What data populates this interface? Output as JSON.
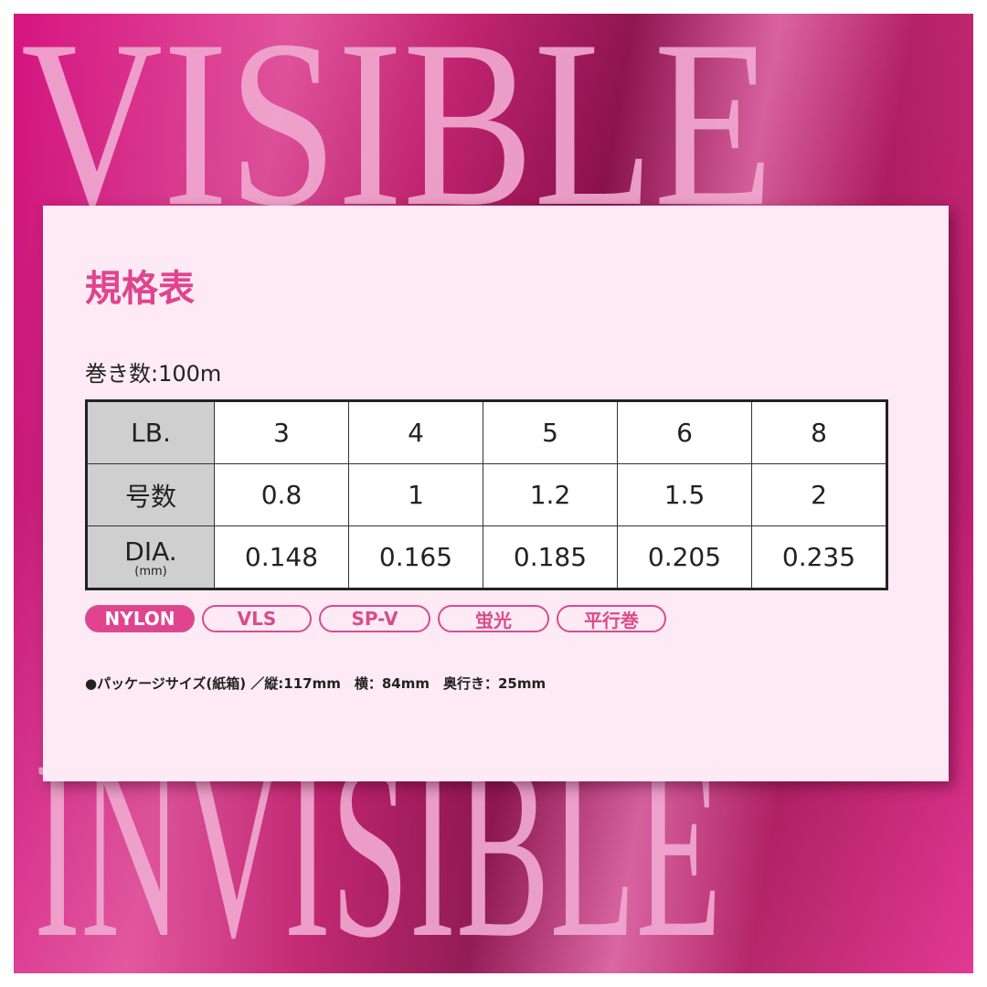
{
  "background": {
    "top_word": "VISIBLE",
    "bottom_word": "INVISIBLE"
  },
  "title": "規格表",
  "winding": "巻き数:100m",
  "table": {
    "rows": [
      {
        "header": "LB.",
        "sub": "",
        "values": [
          "3",
          "4",
          "5",
          "6",
          "8"
        ]
      },
      {
        "header": "号数",
        "sub": "",
        "values": [
          "0.8",
          "1",
          "1.2",
          "1.5",
          "2"
        ]
      },
      {
        "header": "DIA.",
        "sub": "(mm)",
        "values": [
          "0.148",
          "0.165",
          "0.185",
          "0.205",
          "0.235"
        ]
      }
    ]
  },
  "tags": [
    {
      "label": "NYLON",
      "active": true
    },
    {
      "label": "VLS",
      "active": false
    },
    {
      "label": "SP-V",
      "active": false
    },
    {
      "label": "蛍光",
      "active": false
    },
    {
      "label": "平行巻",
      "active": false
    }
  ],
  "package": "●パッケージサイズ(紙箱) ／縦:117mm　横：84mm　奥行き：25mm",
  "colors": {
    "accent": "#e0448e",
    "background": "#d4087a",
    "card": "#fdeaf4"
  }
}
